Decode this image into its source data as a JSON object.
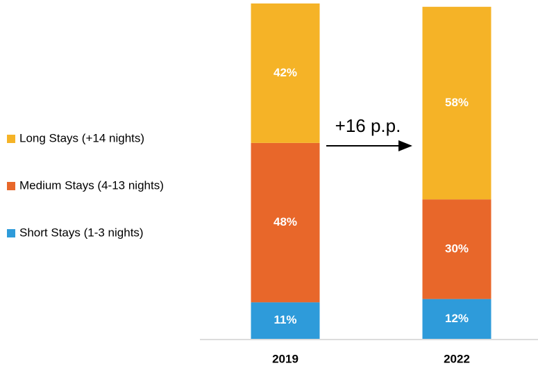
{
  "chart_data": {
    "type": "stacked_bar",
    "categories": [
      "2019",
      "2022"
    ],
    "series": [
      {
        "name": "Short Stays (1-3 nights)",
        "color": "#2e9bda",
        "values": [
          11,
          12
        ],
        "value_labels": [
          "11%",
          "12%"
        ]
      },
      {
        "name": "Medium Stays (4-13 nights)",
        "color": "#e8672a",
        "values": [
          48,
          30
        ],
        "value_labels": [
          "48%",
          "30%"
        ]
      },
      {
        "name": "Long Stays (+14 nights)",
        "color": "#f5b327",
        "values": [
          42,
          58
        ],
        "value_labels": [
          "42%",
          "58%"
        ]
      }
    ],
    "ylim": [
      0,
      101
    ],
    "annotation": "+16 p.p."
  }
}
